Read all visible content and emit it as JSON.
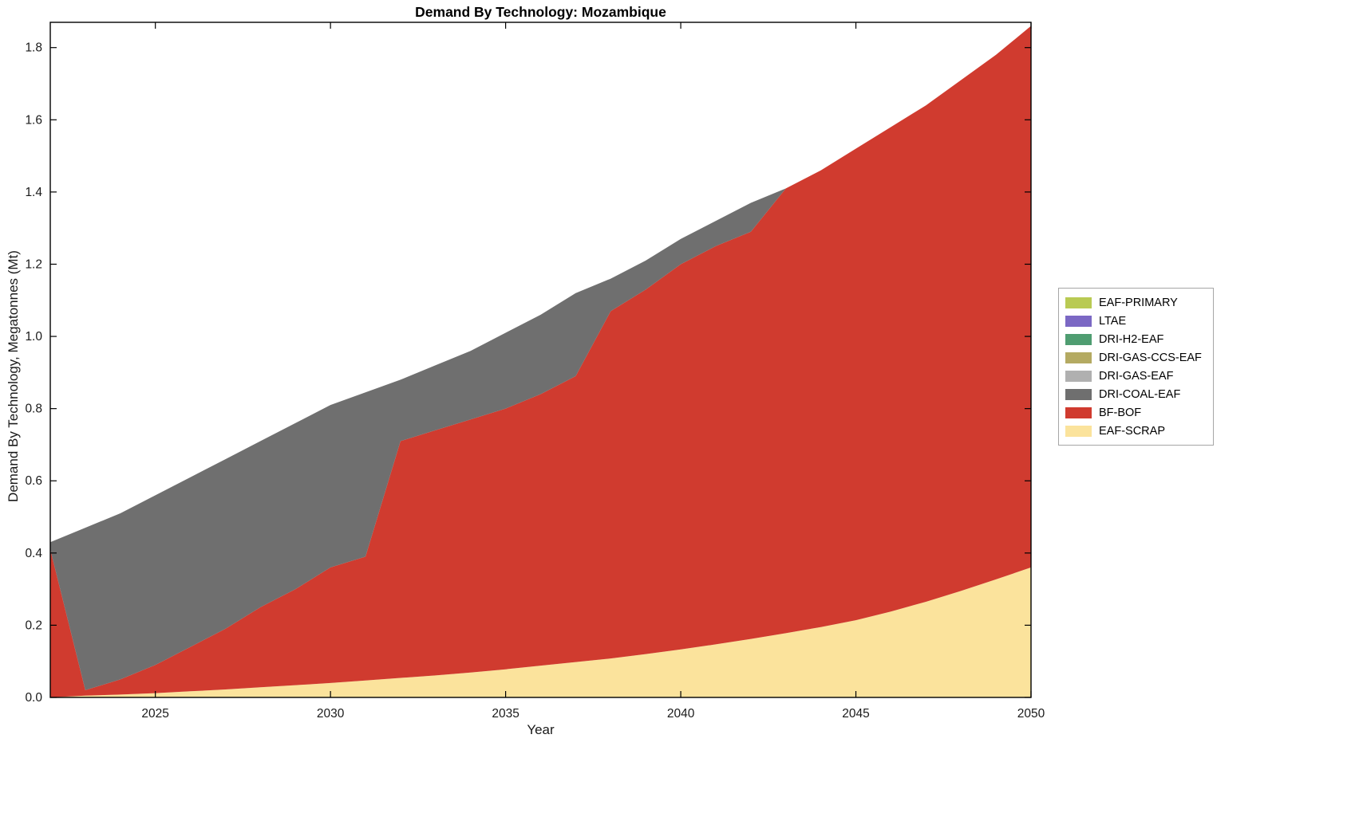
{
  "chart_data": {
    "type": "area",
    "stacked": true,
    "title": "Demand By Technology: Mozambique",
    "xlabel": "Year",
    "ylabel": "Demand By Technology, Megatonnes (Mt)",
    "xlim": [
      2022,
      2050
    ],
    "ylim": [
      0,
      1.87
    ],
    "grid": false,
    "legend_position": "right-outside",
    "background": "#ffffff",
    "axis_color": "#000000",
    "legend_border_color": "#a6a6a6",
    "x": [
      2022,
      2023,
      2024,
      2025,
      2026,
      2027,
      2028,
      2029,
      2030,
      2031,
      2032,
      2033,
      2034,
      2035,
      2036,
      2037,
      2038,
      2039,
      2040,
      2041,
      2042,
      2043,
      2044,
      2045,
      2046,
      2047,
      2048,
      2049,
      2050
    ],
    "x_ticks": [
      2025,
      2030,
      2035,
      2040,
      2045,
      2050
    ],
    "x_tick_labels": [
      "2025",
      "2030",
      "2035",
      "2040",
      "2045",
      "2050"
    ],
    "y_ticks": [
      0,
      0.2,
      0.4,
      0.6,
      0.8,
      1.0,
      1.2,
      1.4,
      1.6,
      1.8
    ],
    "y_tick_labels": [
      "0.0",
      "0.2",
      "0.4",
      "0.6",
      "0.8",
      "1.0",
      "1.2",
      "1.4",
      "1.6",
      "1.8"
    ],
    "stack_order": [
      "EAF-SCRAP",
      "BF-BOF",
      "DRI-COAL-EAF",
      "DRI-GAS-EAF",
      "DRI-GAS-CCS-EAF",
      "DRI-H2-EAF",
      "LTAE",
      "EAF-PRIMARY"
    ],
    "series": [
      {
        "name": "EAF-PRIMARY",
        "color": "#b9ca53",
        "values": [
          0,
          0,
          0,
          0,
          0,
          0,
          0,
          0,
          0,
          0,
          0,
          0,
          0,
          0,
          0,
          0,
          0,
          0,
          0,
          0,
          0,
          0,
          0,
          0,
          0,
          0,
          0,
          0,
          0
        ]
      },
      {
        "name": "LTAE",
        "color": "#7b68c4",
        "values": [
          0,
          0,
          0,
          0,
          0,
          0,
          0,
          0,
          0,
          0,
          0,
          0,
          0,
          0,
          0,
          0,
          0,
          0,
          0,
          0,
          0,
          0,
          0,
          0,
          0,
          0,
          0,
          0,
          0
        ]
      },
      {
        "name": "DRI-H2-EAF",
        "color": "#4f9d71",
        "values": [
          0,
          0,
          0,
          0,
          0,
          0,
          0,
          0,
          0,
          0,
          0,
          0,
          0,
          0,
          0,
          0,
          0,
          0,
          0,
          0,
          0,
          0,
          0,
          0,
          0,
          0,
          0,
          0,
          0
        ]
      },
      {
        "name": "DRI-GAS-CCS-EAF",
        "color": "#b4aa62",
        "values": [
          0,
          0,
          0,
          0,
          0,
          0,
          0,
          0,
          0,
          0,
          0,
          0,
          0,
          0,
          0,
          0,
          0,
          0,
          0,
          0,
          0,
          0,
          0,
          0,
          0,
          0,
          0,
          0,
          0
        ]
      },
      {
        "name": "DRI-GAS-EAF",
        "color": "#b0b0b0",
        "values": [
          0,
          0,
          0,
          0,
          0,
          0,
          0,
          0,
          0,
          0,
          0,
          0,
          0,
          0,
          0,
          0,
          0,
          0,
          0,
          0,
          0,
          0,
          0,
          0,
          0,
          0,
          0,
          0,
          0
        ]
      },
      {
        "name": "DRI-COAL-EAF",
        "color": "#6f6f6f",
        "values": [
          0.02,
          0.45,
          0.46,
          0.47,
          0.47,
          0.47,
          0.46,
          0.46,
          0.45,
          0.455,
          0.17,
          0.18,
          0.19,
          0.21,
          0.22,
          0.23,
          0.09,
          0.08,
          0.07,
          0.07,
          0.08,
          0,
          0,
          0,
          0,
          0,
          0,
          0,
          0
        ]
      },
      {
        "name": "BF-BOF",
        "color": "#d03b2f",
        "values": [
          0.41,
          0.015,
          0.042,
          0.078,
          0.123,
          0.168,
          0.222,
          0.266,
          0.32,
          0.343,
          0.656,
          0.679,
          0.701,
          0.722,
          0.752,
          0.792,
          0.962,
          1.01,
          1.067,
          1.103,
          1.128,
          1.232,
          1.265,
          1.306,
          1.342,
          1.375,
          1.415,
          1.453,
          1.5
        ]
      },
      {
        "name": "EAF-SCRAP",
        "color": "#fbe39c",
        "values": [
          0.0,
          0.005,
          0.008,
          0.012,
          0.017,
          0.022,
          0.028,
          0.034,
          0.04,
          0.047,
          0.054,
          0.061,
          0.069,
          0.078,
          0.088,
          0.098,
          0.108,
          0.12,
          0.133,
          0.147,
          0.162,
          0.178,
          0.195,
          0.214,
          0.238,
          0.265,
          0.295,
          0.327,
          0.36
        ]
      }
    ]
  }
}
